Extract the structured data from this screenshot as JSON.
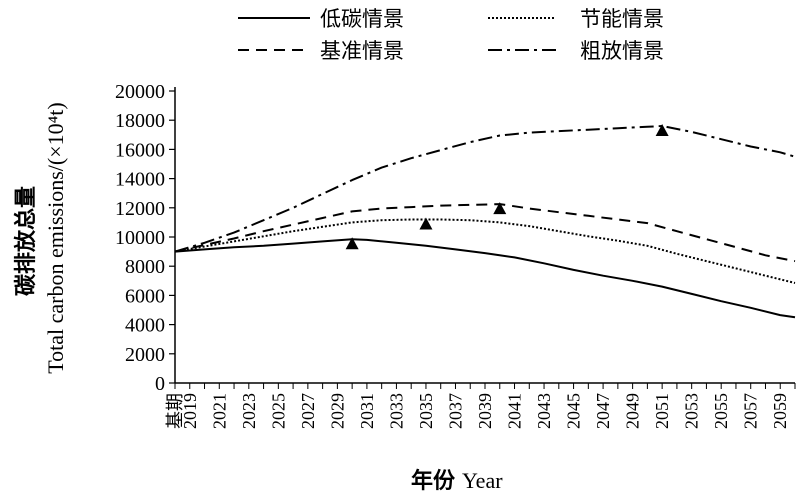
{
  "chart_data": {
    "type": "line",
    "title": "",
    "xlabel_cn": "年份",
    "xlabel_en": "Year",
    "ylabel_cn": "碳排放总量",
    "ylabel_en": "Total carbon emissions/(×10⁴t)",
    "ylim": [
      0,
      20000
    ],
    "yticks": [
      0,
      2000,
      4000,
      6000,
      8000,
      10000,
      12000,
      14000,
      16000,
      18000,
      20000
    ],
    "x_base_label": "基期",
    "x_start_year": 2018,
    "x_end_year": 2060,
    "xtick_labels": [
      "基期",
      "2019",
      "2021",
      "2023",
      "2025",
      "2027",
      "2029",
      "2031",
      "2033",
      "2035",
      "2037",
      "2039",
      "2041",
      "2043",
      "2045",
      "2047",
      "2049",
      "2051",
      "2053",
      "2055",
      "2057",
      "2059"
    ],
    "legend_position": "top",
    "grid": false,
    "series": [
      {
        "name": "低碳情景",
        "style": "solid",
        "x": [
          2018,
          2020,
          2022,
          2024,
          2026,
          2028,
          2030,
          2031,
          2033,
          2035,
          2037,
          2039,
          2041,
          2043,
          2045,
          2047,
          2049,
          2051,
          2053,
          2055,
          2057,
          2059,
          2060
        ],
        "values": [
          9000,
          9150,
          9300,
          9400,
          9550,
          9700,
          9850,
          9800,
          9600,
          9400,
          9150,
          8900,
          8600,
          8200,
          7750,
          7350,
          7000,
          6600,
          6100,
          5600,
          5150,
          4650,
          4500
        ],
        "peak": {
          "x": 2030,
          "y": 9850
        }
      },
      {
        "name": "节能情景",
        "style": "dotted",
        "x": [
          2018,
          2020,
          2022,
          2024,
          2026,
          2028,
          2030,
          2032,
          2034,
          2036,
          2038,
          2040,
          2042,
          2044,
          2046,
          2048,
          2050,
          2052,
          2054,
          2056,
          2058,
          2060
        ],
        "values": [
          9000,
          9350,
          9700,
          10050,
          10400,
          10700,
          11000,
          11150,
          11200,
          11200,
          11150,
          11000,
          10750,
          10400,
          10050,
          9750,
          9400,
          8850,
          8350,
          7850,
          7350,
          6850
        ],
        "peak": {
          "x": 2035,
          "y": 11200
        }
      },
      {
        "name": "基准情景",
        "style": "dashed",
        "x": [
          2018,
          2020,
          2022,
          2024,
          2026,
          2028,
          2030,
          2032,
          2034,
          2036,
          2038,
          2040,
          2042,
          2044,
          2046,
          2048,
          2050,
          2052,
          2054,
          2056,
          2058,
          2060
        ],
        "values": [
          9000,
          9450,
          9900,
          10400,
          10850,
          11300,
          11750,
          11950,
          12050,
          12150,
          12200,
          12250,
          11950,
          11700,
          11450,
          11200,
          10950,
          10400,
          9850,
          9300,
          8750,
          8350
        ],
        "peak": {
          "x": 2040,
          "y": 12250
        }
      },
      {
        "name": "粗放情景",
        "style": "dashdot",
        "x": [
          2018,
          2020,
          2022,
          2024,
          2026,
          2028,
          2030,
          2032,
          2034,
          2036,
          2038,
          2040,
          2042,
          2044,
          2046,
          2048,
          2050,
          2051,
          2053,
          2055,
          2057,
          2059,
          2060
        ],
        "values": [
          9000,
          9600,
          10300,
          11150,
          12000,
          12950,
          13900,
          14750,
          15400,
          15950,
          16500,
          16950,
          17150,
          17250,
          17350,
          17450,
          17550,
          17600,
          17200,
          16700,
          16200,
          15800,
          15500
        ],
        "peak": {
          "x": 2051,
          "y": 17600
        }
      }
    ]
  }
}
